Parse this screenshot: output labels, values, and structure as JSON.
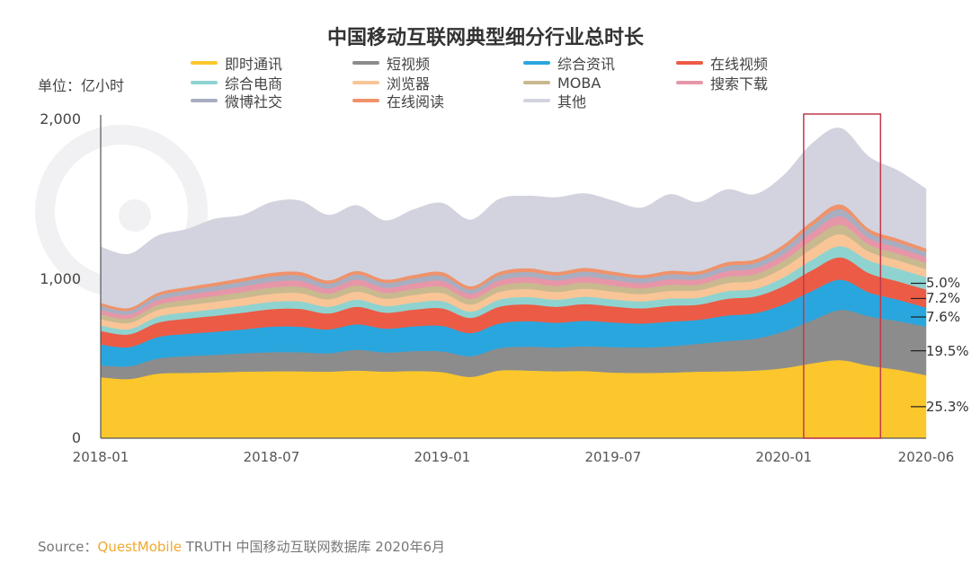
{
  "chart_data": {
    "type": "area",
    "stacked": true,
    "title": "中国移动互联网典型细分行业总时长",
    "unit_label": "单位：亿小时",
    "x": [
      "2018-01",
      "2018-02",
      "2018-03",
      "2018-04",
      "2018-05",
      "2018-06",
      "2018-07",
      "2018-08",
      "2018-09",
      "2018-10",
      "2018-11",
      "2018-12",
      "2019-01",
      "2019-02",
      "2019-03",
      "2019-04",
      "2019-05",
      "2019-06",
      "2019-07",
      "2019-08",
      "2019-09",
      "2019-10",
      "2019-11",
      "2019-12",
      "2020-01",
      "2020-02",
      "2020-03",
      "2020-04",
      "2020-05",
      "2020-06"
    ],
    "x_tick_labels": [
      "2018-01",
      "2018-07",
      "2019-01",
      "2019-07",
      "2020-01",
      "2020-06"
    ],
    "y_tick_labels": [
      "0",
      "1,000",
      "2,000"
    ],
    "ylim": [
      0,
      2000
    ],
    "grid": false,
    "legend_position": "top",
    "series": [
      {
        "name": "即时通讯",
        "color": "#fcc72c",
        "values": [
          383,
          372,
          405,
          410,
          413,
          418,
          420,
          420,
          418,
          425,
          418,
          422,
          415,
          385,
          425,
          425,
          420,
          422,
          412,
          410,
          412,
          418,
          420,
          425,
          440,
          470,
          490,
          455,
          430,
          396
        ]
      },
      {
        "name": "短视频",
        "color": "#8c8c8c",
        "values": [
          75,
          80,
          95,
          105,
          110,
          115,
          120,
          120,
          115,
          130,
          120,
          125,
          130,
          130,
          140,
          150,
          150,
          155,
          160,
          160,
          165,
          175,
          190,
          200,
          230,
          270,
          315,
          310,
          305,
          305
        ]
      },
      {
        "name": "综合资讯",
        "color": "#2aa6de",
        "values": [
          130,
          120,
          135,
          140,
          145,
          150,
          160,
          160,
          150,
          160,
          150,
          155,
          160,
          145,
          155,
          160,
          155,
          160,
          155,
          150,
          155,
          150,
          160,
          160,
          170,
          185,
          190,
          150,
          135,
          119
        ]
      },
      {
        "name": "在线视频",
        "color": "#ec5b45",
        "values": [
          85,
          80,
          90,
          95,
          100,
          105,
          110,
          112,
          100,
          110,
          100,
          105,
          110,
          95,
          105,
          105,
          100,
          105,
          100,
          95,
          100,
          95,
          105,
          105,
          115,
          130,
          140,
          120,
          115,
          113
        ]
      },
      {
        "name": "综合电商",
        "color": "#8fd3d0",
        "values": [
          35,
          33,
          38,
          40,
          42,
          44,
          46,
          47,
          42,
          45,
          42,
          44,
          46,
          40,
          45,
          46,
          45,
          46,
          45,
          44,
          45,
          44,
          48,
          48,
          55,
          65,
          70,
          80,
          80,
          78
        ]
      },
      {
        "name": "浏览器",
        "color": "#f9c597",
        "values": [
          40,
          38,
          42,
          44,
          46,
          48,
          50,
          52,
          46,
          50,
          46,
          48,
          50,
          44,
          48,
          50,
          48,
          50,
          48,
          46,
          48,
          46,
          50,
          52,
          60,
          70,
          75,
          55,
          52,
          50
        ]
      },
      {
        "name": "MOBA",
        "color": "#c9b98f",
        "values": [
          30,
          28,
          32,
          34,
          36,
          38,
          40,
          40,
          36,
          40,
          36,
          38,
          40,
          35,
          38,
          40,
          38,
          40,
          38,
          36,
          38,
          36,
          40,
          40,
          45,
          55,
          60,
          45,
          42,
          40
        ]
      },
      {
        "name": "搜索下载",
        "color": "#e796a8",
        "values": [
          28,
          26,
          30,
          32,
          33,
          35,
          36,
          37,
          33,
          36,
          33,
          35,
          36,
          32,
          35,
          36,
          35,
          36,
          35,
          33,
          35,
          33,
          36,
          37,
          40,
          48,
          52,
          40,
          38,
          36
        ]
      },
      {
        "name": "微博社交",
        "color": "#a8aec0",
        "values": [
          25,
          24,
          27,
          28,
          30,
          31,
          33,
          33,
          30,
          32,
          30,
          31,
          33,
          28,
          31,
          32,
          31,
          32,
          31,
          30,
          31,
          30,
          33,
          33,
          36,
          42,
          45,
          35,
          33,
          32
        ]
      },
      {
        "name": "在线阅读",
        "color": "#f0926a",
        "values": [
          18,
          17,
          19,
          20,
          21,
          22,
          23,
          23,
          21,
          22,
          21,
          22,
          23,
          20,
          22,
          23,
          22,
          23,
          22,
          21,
          22,
          21,
          23,
          23,
          25,
          28,
          30,
          24,
          23,
          22
        ]
      },
      {
        "name": "其他",
        "color": "#d2d3de",
        "values": [
          351,
          337,
          357,
          362,
          399,
          394,
          442,
          446,
          409,
          410,
          369,
          410,
          432,
          416,
          456,
          453,
          466,
          466,
          444,
          420,
          479,
          432,
          455,
          407,
          434,
          487,
          478,
          451,
          427,
          374
        ]
      }
    ],
    "annotations": {
      "highlight_range": [
        "2020-02",
        "2020-04"
      ],
      "highlight_color": "#c0394b",
      "end_shares": [
        {
          "series": "综合电商",
          "label": "5.0%"
        },
        {
          "series": "在线视频",
          "label": "7.2%"
        },
        {
          "series": "综合资讯",
          "label": "7.6%"
        },
        {
          "series": "短视频",
          "label": "19.5%"
        },
        {
          "series": "即时通讯",
          "label": "25.3%"
        }
      ]
    }
  },
  "source": {
    "prefix": "Source：",
    "brand": "QuestMobile",
    "rest": " TRUTH 中国移动互联网数据库 2020年6月",
    "brand_color": "#f0a830"
  }
}
